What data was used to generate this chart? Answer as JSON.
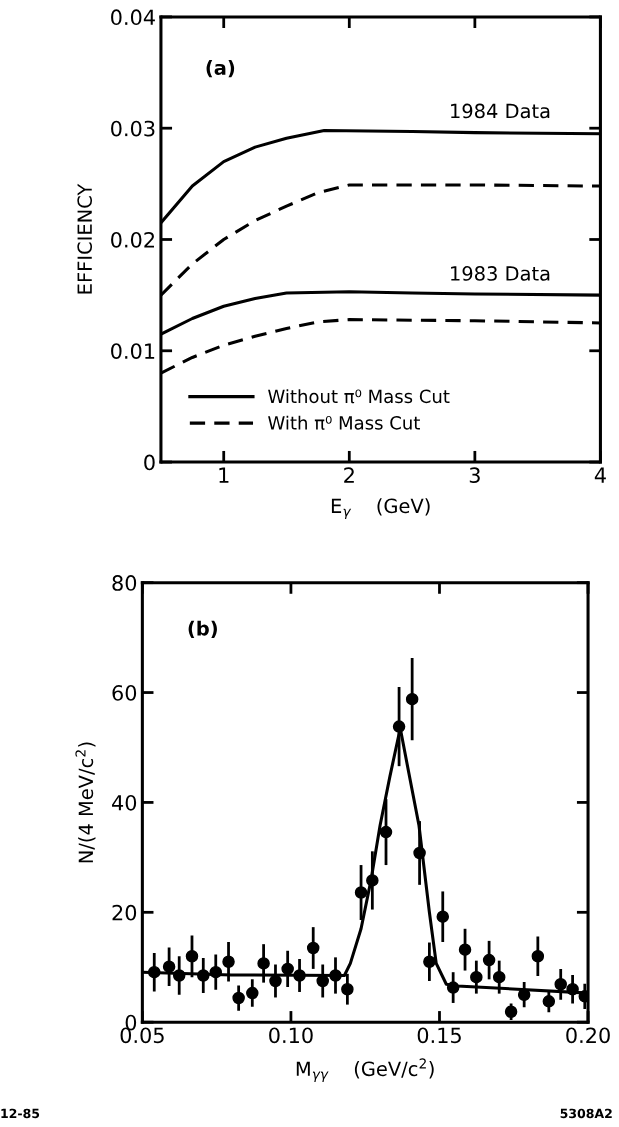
{
  "chart_data": [
    {
      "type": "line",
      "xlabel": "E$_{γ}$    (GeV)",
      "ylabel": "EFFICIENCY",
      "xlim": [
        0.5,
        4
      ],
      "ylim": [
        0,
        0.04
      ],
      "xticks": [
        1,
        2,
        3,
        4
      ],
      "yticks": [
        0,
        0.01,
        0.02,
        0.03,
        0.04
      ],
      "grid": false,
      "legend": "bottom left",
      "series": [
        {
          "name": "Without π⁰ Mass Cut",
          "color": "#000000",
          "line_style": "solid",
          "x": [
            0.5,
            0.75,
            1,
            1.25,
            1.5,
            1.8,
            2.5,
            3,
            4
          ],
          "values": [
            0.0215,
            0.0248,
            0.027,
            0.0283,
            0.0291,
            0.0298,
            0.0297,
            0.0296,
            0.0295
          ]
        },
        {
          "name": "With π⁰ Mass Cut",
          "color": "#000000",
          "line_style": "dashed",
          "x": [
            0.5,
            0.75,
            1,
            1.25,
            1.5,
            1.75,
            2,
            3,
            4
          ],
          "values": [
            0.015,
            0.0178,
            0.02,
            0.0217,
            0.023,
            0.0242,
            0.0249,
            0.0249,
            0.0248
          ]
        },
        {
          "color": "#000000",
          "line_style": "solid",
          "x": [
            0.5,
            0.75,
            1,
            1.25,
            1.5,
            2,
            2.5,
            3,
            4
          ],
          "values": [
            0.0115,
            0.0129,
            0.014,
            0.0147,
            0.0152,
            0.0153,
            0.0152,
            0.0151,
            0.015
          ]
        },
        {
          "color": "#000000",
          "line_style": "dashed",
          "x": [
            0.5,
            0.75,
            1,
            1.25,
            1.5,
            1.75,
            2,
            3,
            4
          ],
          "values": [
            0.008,
            0.0094,
            0.0105,
            0.0113,
            0.012,
            0.0126,
            0.0128,
            0.0127,
            0.0125
          ]
        }
      ],
      "annotations": [
        "(a)",
        {
          "text": "1984 Data",
          "x": 3.2,
          "y": 0.0298
        },
        {
          "text": "1983 Data",
          "x": 3.2,
          "y": 0.0152
        }
      ]
    },
    {
      "type": "scatter",
      "xlabel": "M$_{γγ}$    (GeV/c$^{2}$)",
      "ylabel": "N/(4 MeV/c$^{2}$)",
      "xlim": [
        0.05,
        0.2
      ],
      "ylim": [
        0,
        80
      ],
      "xticks": [
        {
          "value": 0.05,
          "label": "0.05"
        },
        {
          "value": 0.1,
          "label": "0.10"
        },
        {
          "value": 0.15,
          "label": "0.15"
        },
        {
          "value": 0.2,
          "label": "0.20"
        }
      ],
      "yticks": [
        0,
        20,
        40,
        60,
        80
      ],
      "grid": false,
      "series": [
        {
          "type": "scatter",
          "marker": "circle",
          "color": "#000000",
          "x": [
            0.054,
            0.059,
            0.0624,
            0.0667,
            0.0705,
            0.0747,
            0.079,
            0.0824,
            0.087,
            0.0908,
            0.0948,
            0.0989,
            0.1029,
            0.1075,
            0.1107,
            0.115,
            0.119,
            0.1236,
            0.1274,
            0.132,
            0.1364,
            0.1408,
            0.1433,
            0.1466,
            0.1511,
            0.1546,
            0.1586,
            0.1624,
            0.1667,
            0.1701,
            0.1741,
            0.1785,
            0.1831,
            0.1868,
            0.1908,
            0.1948,
            0.1989
          ],
          "values": [
            9.1,
            10.1,
            8.5,
            12.0,
            8.5,
            9.1,
            11.0,
            4.4,
            5.3,
            10.7,
            7.5,
            9.7,
            8.5,
            13.5,
            7.5,
            8.5,
            6.0,
            23.6,
            25.8,
            34.6,
            53.8,
            58.8,
            30.8,
            11.0,
            19.2,
            6.3,
            13.2,
            8.2,
            11.3,
            8.2,
            1.9,
            5.0,
            12.0,
            3.8,
            6.9,
            6.0,
            4.7
          ],
          "errors": [
            3.5,
            3.5,
            3.5,
            3.8,
            3.2,
            3.2,
            3.6,
            2.3,
            2.5,
            3.5,
            3,
            3.3,
            3,
            3.8,
            3,
            3.3,
            2.8,
            5,
            5.3,
            6,
            7.2,
            7.5,
            5.8,
            3.5,
            4.6,
            2.8,
            3.8,
            3,
            3.5,
            3,
            1.5,
            2.3,
            3.6,
            2,
            2.8,
            2.6,
            2.3
          ]
        },
        {
          "type": "line",
          "color": "#000000",
          "line_style": "solid",
          "x": [
            0.05,
            0.08,
            0.118,
            0.12,
            0.1236,
            0.127,
            0.13,
            0.1333,
            0.1368,
            0.1397,
            0.1431,
            0.1466,
            0.1489,
            0.1523,
            0.156,
            0.2
          ],
          "values": [
            9.1,
            8.6,
            8.5,
            10.7,
            17,
            26,
            35.8,
            44.7,
            53.5,
            45.3,
            35.8,
            20,
            10.7,
            6.9,
            6.6,
            5.3
          ]
        }
      ],
      "annotations": [
        "(b)",
        "12-85",
        "5308A2"
      ]
    }
  ]
}
